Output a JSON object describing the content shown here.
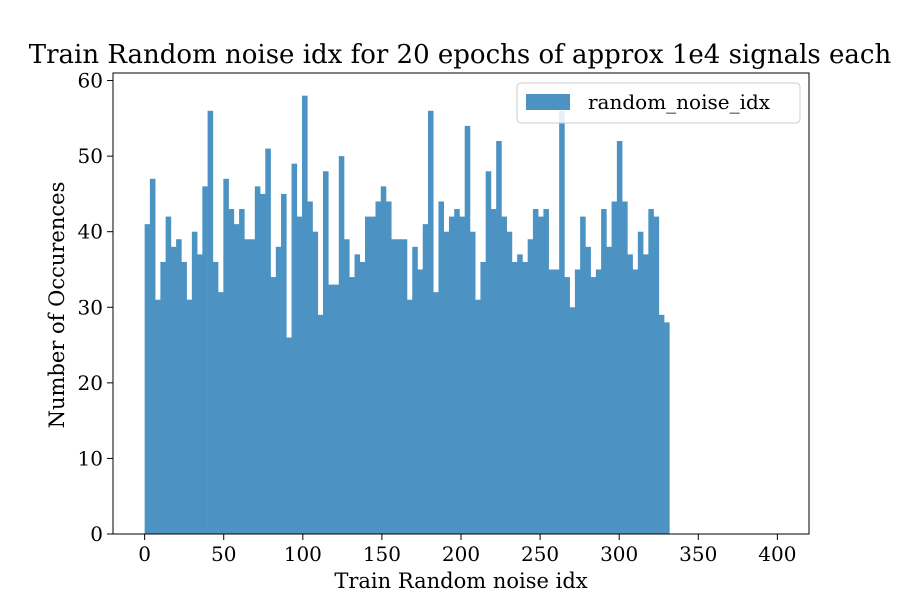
{
  "chart_data": {
    "type": "bar",
    "title": "Train Random noise idx for 20 epochs of approx 1e4 signals each",
    "xlabel": "Train Random noise idx",
    "ylabel": "Number of Occurences",
    "xlim": [
      -20,
      420
    ],
    "ylim": [
      0,
      61
    ],
    "x_ticks": [
      0,
      50,
      100,
      150,
      200,
      250,
      300,
      350,
      400
    ],
    "y_ticks": [
      0,
      10,
      20,
      30,
      40,
      50,
      60
    ],
    "bin_start": 0,
    "bin_width": 3.317,
    "legend_position": "upper right",
    "grid": false,
    "bar_color": "#4c93c3",
    "series": [
      {
        "name": "random_noise_idx",
        "values": [
          41,
          47,
          31,
          36,
          42,
          38,
          39,
          36,
          31,
          40,
          37,
          46,
          56,
          36,
          32,
          47,
          43,
          41,
          43,
          39,
          39,
          46,
          45,
          51,
          34,
          38,
          45,
          26,
          49,
          42,
          58,
          44,
          40,
          29,
          48,
          33,
          33,
          50,
          39,
          34,
          37,
          36,
          42,
          42,
          44,
          46,
          44,
          39,
          39,
          39,
          31,
          38,
          35,
          41,
          56,
          32,
          44,
          40,
          42,
          43,
          42,
          54,
          40,
          31,
          36,
          48,
          43,
          52,
          42,
          40,
          36,
          37,
          36,
          39,
          43,
          42,
          43,
          35,
          35,
          56,
          34,
          30,
          35,
          42,
          38,
          34,
          35,
          43,
          38,
          44,
          52,
          44,
          37,
          35,
          40,
          37,
          43,
          42,
          29,
          28
        ]
      }
    ]
  }
}
